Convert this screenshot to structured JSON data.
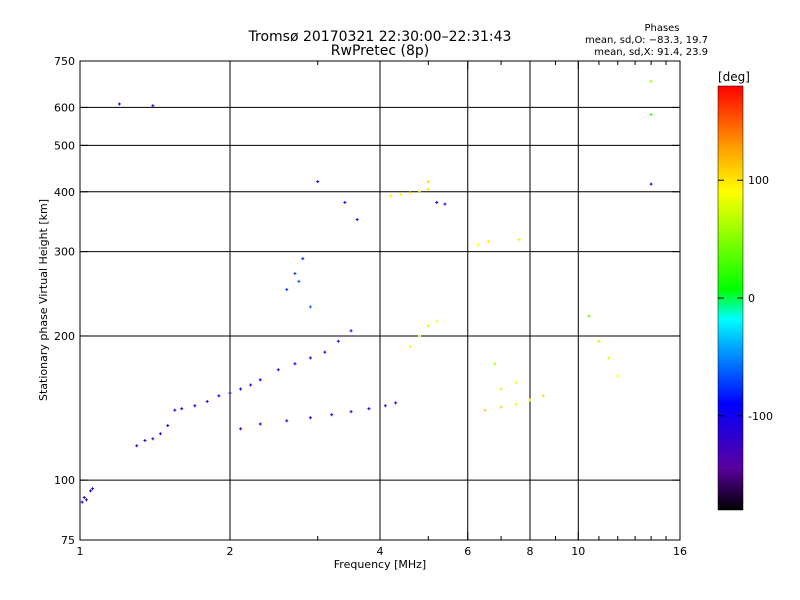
{
  "header": {
    "title": "Tromsø 20170321 22:30:00–22:31:43",
    "subtitle": "RwPretec (8p)",
    "stats_title": "Phases",
    "stats_line1": "mean, sd,O: −83.3, 19.7",
    "stats_line2": "mean, sd,X:  91.4, 23.9"
  },
  "chart_data": {
    "type": "scatter",
    "xlabel": "Frequency [MHz]",
    "ylabel": "Stationary phase Virtual Height [km]",
    "x_scale": "log",
    "y_scale": "log",
    "xlim": [
      1,
      16
    ],
    "ylim": [
      75,
      750
    ],
    "x_ticks": [
      1,
      2,
      4,
      6,
      8,
      10,
      16
    ],
    "x_minor_ticks": [
      3,
      5,
      7,
      9,
      11,
      12,
      13,
      14,
      15
    ],
    "y_ticks": [
      75,
      100,
      200,
      300,
      400,
      500,
      600,
      750
    ],
    "x_grid": [
      2,
      4,
      6,
      8,
      10
    ],
    "y_grid": [
      100,
      200,
      300,
      400,
      500,
      600
    ],
    "colorbar": {
      "label": "[deg]",
      "ticks": [
        100,
        0,
        -100
      ],
      "range": [
        -180,
        180
      ],
      "colors": [
        "#000000",
        "#5a00a0",
        "#0000ff",
        "#00a0ff",
        "#00ffff",
        "#00ff00",
        "#ffff00",
        "#ff9900",
        "#ff0000"
      ]
    },
    "series": [
      {
        "points": [
          [
            1.02,
            92,
            -120
          ],
          [
            1.05,
            95,
            -110
          ],
          [
            1.03,
            91,
            -100
          ],
          [
            1.06,
            96,
            -115
          ],
          [
            1.01,
            90,
            -105
          ],
          [
            1.3,
            118,
            -110
          ],
          [
            1.35,
            121,
            -115
          ],
          [
            1.4,
            122,
            -120
          ],
          [
            1.45,
            125,
            -105
          ],
          [
            1.5,
            130,
            -100
          ],
          [
            1.55,
            140,
            -110
          ],
          [
            1.6,
            141,
            -95
          ],
          [
            1.7,
            143,
            -100
          ],
          [
            1.8,
            146,
            -115
          ],
          [
            1.9,
            150,
            -105
          ],
          [
            2.0,
            152,
            -110
          ],
          [
            2.1,
            155,
            -100
          ],
          [
            2.2,
            158,
            -120
          ],
          [
            2.3,
            162,
            -95
          ],
          [
            2.5,
            170,
            -105
          ],
          [
            2.7,
            175,
            -90
          ],
          [
            2.9,
            180,
            -110
          ],
          [
            3.1,
            185,
            -100
          ],
          [
            3.3,
            195,
            -115
          ],
          [
            3.5,
            205,
            -105
          ],
          [
            2.1,
            128,
            -110
          ],
          [
            2.3,
            131,
            -100
          ],
          [
            2.6,
            133,
            -115
          ],
          [
            2.9,
            135,
            -105
          ],
          [
            3.2,
            137,
            -95
          ],
          [
            3.5,
            139,
            -110
          ],
          [
            3.8,
            141,
            -100
          ],
          [
            4.1,
            143,
            -120
          ],
          [
            4.3,
            145,
            -105
          ],
          [
            2.6,
            250,
            -75
          ],
          [
            2.7,
            270,
            -70
          ],
          [
            2.8,
            290,
            -80
          ],
          [
            2.9,
            230,
            -60
          ],
          [
            2.75,
            260,
            -65
          ],
          [
            3.6,
            350,
            -85
          ],
          [
            3.4,
            380,
            -95
          ],
          [
            3.0,
            420,
            -100
          ],
          [
            4.2,
            392,
            100
          ],
          [
            4.4,
            395,
            95
          ],
          [
            4.6,
            398,
            105
          ],
          [
            4.8,
            400,
            110
          ],
          [
            5.0,
            405,
            100
          ],
          [
            5.2,
            380,
            -110
          ],
          [
            5.4,
            377,
            -105
          ],
          [
            5.0,
            420,
            110
          ],
          [
            4.8,
            200,
            85
          ],
          [
            5.0,
            210,
            80
          ],
          [
            5.2,
            215,
            90
          ],
          [
            4.6,
            190,
            95
          ],
          [
            6.5,
            140,
            110
          ],
          [
            7.0,
            142,
            105
          ],
          [
            7.5,
            144,
            95
          ],
          [
            8.0,
            147,
            100
          ],
          [
            8.5,
            150,
            110
          ],
          [
            6.3,
            310,
            90
          ],
          [
            6.6,
            315,
            95
          ],
          [
            7.6,
            318,
            80
          ],
          [
            7.0,
            155,
            80
          ],
          [
            7.5,
            160,
            90
          ],
          [
            6.8,
            175,
            60
          ],
          [
            10.5,
            220,
            40
          ],
          [
            11.0,
            195,
            70
          ],
          [
            11.5,
            180,
            85
          ],
          [
            12.0,
            165,
            90
          ],
          [
            1.2,
            610,
            -110
          ],
          [
            1.4,
            605,
            -120
          ],
          [
            14.0,
            580,
            20
          ],
          [
            14.0,
            680,
            60
          ],
          [
            14.0,
            415,
            -110
          ]
        ]
      }
    ]
  }
}
